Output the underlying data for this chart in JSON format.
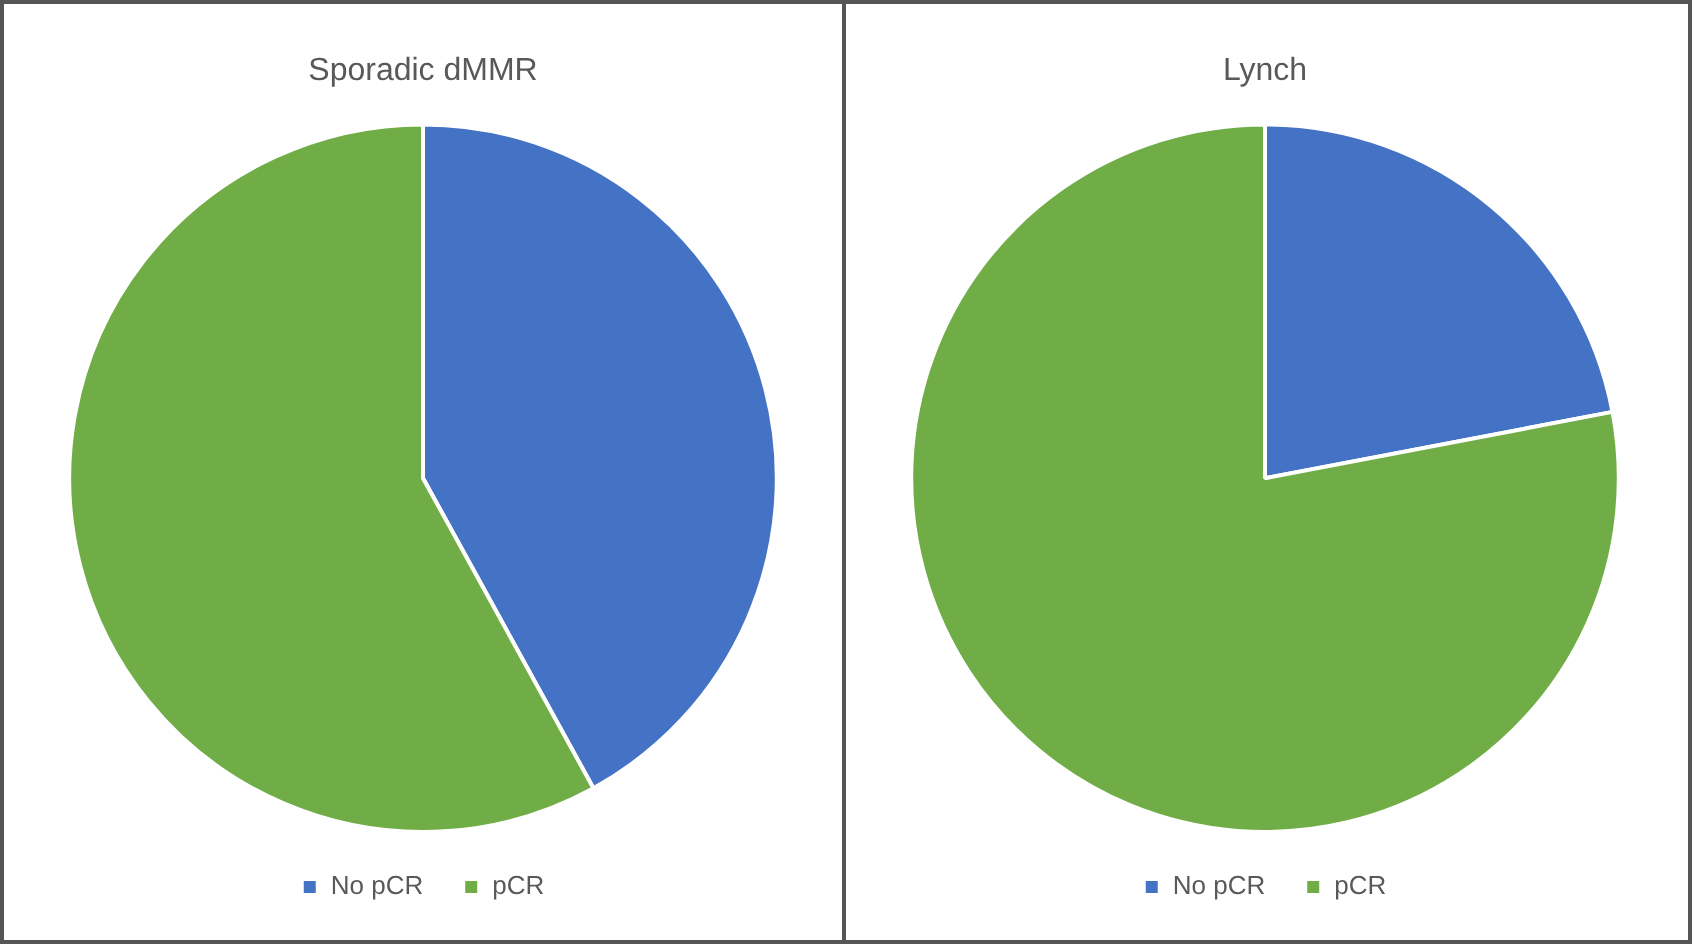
{
  "chart_data": [
    {
      "type": "pie",
      "title": "Sporadic dMMR",
      "categories": [
        "No pCR",
        "pCR"
      ],
      "values": [
        42,
        58
      ],
      "colors": [
        "#4472c4",
        "#70ad47"
      ],
      "legend": "bottom"
    },
    {
      "type": "pie",
      "title": "Lynch",
      "categories": [
        "No pCR",
        "pCR"
      ],
      "values": [
        22,
        78
      ],
      "colors": [
        "#4472c4",
        "#70ad47"
      ],
      "legend": "bottom"
    }
  ]
}
